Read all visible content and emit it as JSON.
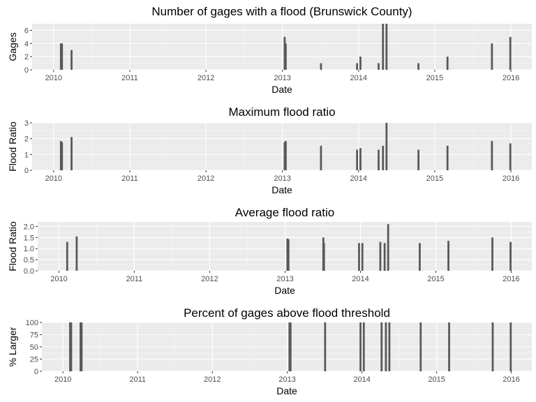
{
  "chart_data": [
    {
      "type": "bar",
      "title": "Number of gages with a flood (Brunswick County)",
      "xlabel": "Date",
      "ylabel": "Gages",
      "ylim": [
        0,
        7
      ],
      "yticks": [
        0,
        2,
        4,
        6
      ],
      "ytick_labels": [
        "0",
        "2",
        "4",
        "6"
      ],
      "xlim": [
        "2009-09-20",
        "2016-04-10"
      ],
      "xticks": [
        "2010-01-01",
        "2011-01-01",
        "2012-01-01",
        "2013-01-01",
        "2014-01-01",
        "2015-01-01",
        "2016-01-01"
      ],
      "xtick_labels": [
        "2010",
        "2011",
        "2012",
        "2013",
        "2014",
        "2015",
        "2016"
      ],
      "grid": true,
      "points": [
        {
          "x": "2010-02-05",
          "y": 4
        },
        {
          "x": "2010-02-10",
          "y": 4
        },
        {
          "x": "2010-03-28",
          "y": 3
        },
        {
          "x": "2013-01-12",
          "y": 5
        },
        {
          "x": "2013-01-17",
          "y": 4
        },
        {
          "x": "2013-07-05",
          "y": 1
        },
        {
          "x": "2013-12-25",
          "y": 1
        },
        {
          "x": "2014-01-10",
          "y": 2
        },
        {
          "x": "2014-04-07",
          "y": 1
        },
        {
          "x": "2014-04-28",
          "y": 7
        },
        {
          "x": "2014-05-15",
          "y": 7
        },
        {
          "x": "2014-10-15",
          "y": 1
        },
        {
          "x": "2015-03-03",
          "y": 2
        },
        {
          "x": "2015-10-02",
          "y": 4
        },
        {
          "x": "2015-12-29",
          "y": 5
        }
      ]
    },
    {
      "type": "bar",
      "title": "Maximum flood ratio",
      "xlabel": "Date",
      "ylabel": "Flood Ratio",
      "ylim": [
        0,
        3
      ],
      "yticks": [
        0,
        1,
        2,
        3
      ],
      "ytick_labels": [
        "0",
        "1",
        "2",
        "3"
      ],
      "xlim": [
        "2009-09-20",
        "2016-04-10"
      ],
      "xticks": [
        "2010-01-01",
        "2011-01-01",
        "2012-01-01",
        "2013-01-01",
        "2014-01-01",
        "2015-01-01",
        "2016-01-01"
      ],
      "xtick_labels": [
        "2010",
        "2011",
        "2012",
        "2013",
        "2014",
        "2015",
        "2016"
      ],
      "grid": true,
      "points": [
        {
          "x": "2010-02-05",
          "y": 1.85
        },
        {
          "x": "2010-02-10",
          "y": 1.78
        },
        {
          "x": "2010-03-28",
          "y": 2.1
        },
        {
          "x": "2013-01-12",
          "y": 1.78
        },
        {
          "x": "2013-01-17",
          "y": 1.85
        },
        {
          "x": "2013-07-05",
          "y": 1.55
        },
        {
          "x": "2013-12-25",
          "y": 1.3
        },
        {
          "x": "2014-01-10",
          "y": 1.4
        },
        {
          "x": "2014-04-07",
          "y": 1.3
        },
        {
          "x": "2014-04-28",
          "y": 1.55
        },
        {
          "x": "2014-05-15",
          "y": 3.0
        },
        {
          "x": "2014-10-15",
          "y": 1.3
        },
        {
          "x": "2015-03-03",
          "y": 1.55
        },
        {
          "x": "2015-10-02",
          "y": 1.85
        },
        {
          "x": "2015-12-29",
          "y": 1.7
        }
      ]
    },
    {
      "type": "bar",
      "title": "Average flood ratio",
      "xlabel": "Date",
      "ylabel": "Flood Ratio",
      "ylim": [
        0,
        2.2
      ],
      "yticks": [
        0,
        0.5,
        1,
        1.5,
        2
      ],
      "ytick_labels": [
        "0.0",
        "0.5",
        "1.0",
        "1.5",
        "2.0"
      ],
      "xlim": [
        "2009-09-20",
        "2016-04-10"
      ],
      "xticks": [
        "2010-01-01",
        "2011-01-01",
        "2012-01-01",
        "2013-01-01",
        "2014-01-01",
        "2015-01-01",
        "2016-01-01"
      ],
      "xtick_labels": [
        "2010",
        "2011",
        "2012",
        "2013",
        "2014",
        "2015",
        "2016"
      ],
      "grid": true,
      "points": [
        {
          "x": "2010-02-10",
          "y": 1.3
        },
        {
          "x": "2010-03-28",
          "y": 1.55
        },
        {
          "x": "2013-01-12",
          "y": 1.45
        },
        {
          "x": "2013-01-17",
          "y": 1.42
        },
        {
          "x": "2013-07-05",
          "y": 1.5
        },
        {
          "x": "2013-07-08",
          "y": 1.25
        },
        {
          "x": "2013-12-25",
          "y": 1.25
        },
        {
          "x": "2014-01-10",
          "y": 1.25
        },
        {
          "x": "2014-04-07",
          "y": 1.3
        },
        {
          "x": "2014-04-28",
          "y": 1.25
        },
        {
          "x": "2014-05-15",
          "y": 2.1
        },
        {
          "x": "2014-10-15",
          "y": 1.25
        },
        {
          "x": "2015-03-03",
          "y": 1.35
        },
        {
          "x": "2015-10-02",
          "y": 1.5
        },
        {
          "x": "2015-12-29",
          "y": 1.3
        }
      ]
    },
    {
      "type": "bar",
      "title": "Percent of gages above flood threshold",
      "xlabel": "Date",
      "ylabel": "% Larger",
      "ylim": [
        0,
        100
      ],
      "yticks": [
        0,
        25,
        50,
        75,
        100
      ],
      "ytick_labels": [
        "0",
        "25",
        "50",
        "75",
        "100"
      ],
      "xlim": [
        "2009-09-20",
        "2016-04-10"
      ],
      "xticks": [
        "2010-01-01",
        "2011-01-01",
        "2012-01-01",
        "2013-01-01",
        "2014-01-01",
        "2015-01-01",
        "2016-01-01"
      ],
      "xtick_labels": [
        "2010",
        "2011",
        "2012",
        "2013",
        "2014",
        "2015",
        "2016"
      ],
      "grid": true,
      "points": [
        {
          "x": "2010-02-05",
          "y": 100
        },
        {
          "x": "2010-02-10",
          "y": 100
        },
        {
          "x": "2010-03-28",
          "y": 100
        },
        {
          "x": "2010-04-02",
          "y": 100
        },
        {
          "x": "2013-01-12",
          "y": 100
        },
        {
          "x": "2013-01-17",
          "y": 100
        },
        {
          "x": "2013-07-05",
          "y": 100
        },
        {
          "x": "2013-12-25",
          "y": 100
        },
        {
          "x": "2014-01-10",
          "y": 100
        },
        {
          "x": "2014-04-07",
          "y": 100
        },
        {
          "x": "2014-04-28",
          "y": 100
        },
        {
          "x": "2014-05-15",
          "y": 100
        },
        {
          "x": "2014-10-15",
          "y": 100
        },
        {
          "x": "2015-03-03",
          "y": 100
        },
        {
          "x": "2015-10-02",
          "y": 100
        },
        {
          "x": "2015-12-29",
          "y": 100
        }
      ]
    }
  ],
  "colors": {
    "panel_background": "#ebebeb",
    "grid_major": "#ffffff",
    "grid_minor": "#f5f5f5",
    "bar": "#595959",
    "tick_text": "#4d4d4d",
    "title_text": "#000000"
  }
}
